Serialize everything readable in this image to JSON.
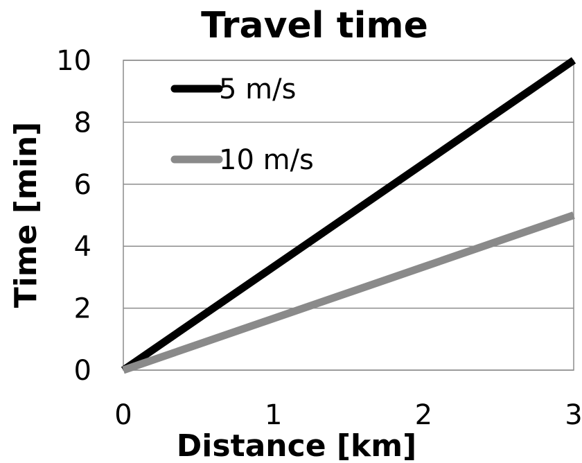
{
  "chart_data": {
    "type": "line",
    "title": "Travel time",
    "xlabel": "Distance [km]",
    "ylabel": "Time [min]",
    "xlim": [
      0,
      3
    ],
    "ylim": [
      0,
      10
    ],
    "x_ticks": [
      0,
      1,
      2,
      3
    ],
    "y_ticks": [
      0,
      2,
      4,
      6,
      8,
      10
    ],
    "grid": "horizontal",
    "legend": "top-left",
    "series": [
      {
        "name": "5 m/s",
        "color": "#000000",
        "x": [
          0,
          3
        ],
        "y": [
          0,
          10
        ]
      },
      {
        "name": "10 m/s",
        "color": "#8a8a8a",
        "x": [
          0,
          3
        ],
        "y": [
          0,
          5
        ]
      }
    ]
  }
}
